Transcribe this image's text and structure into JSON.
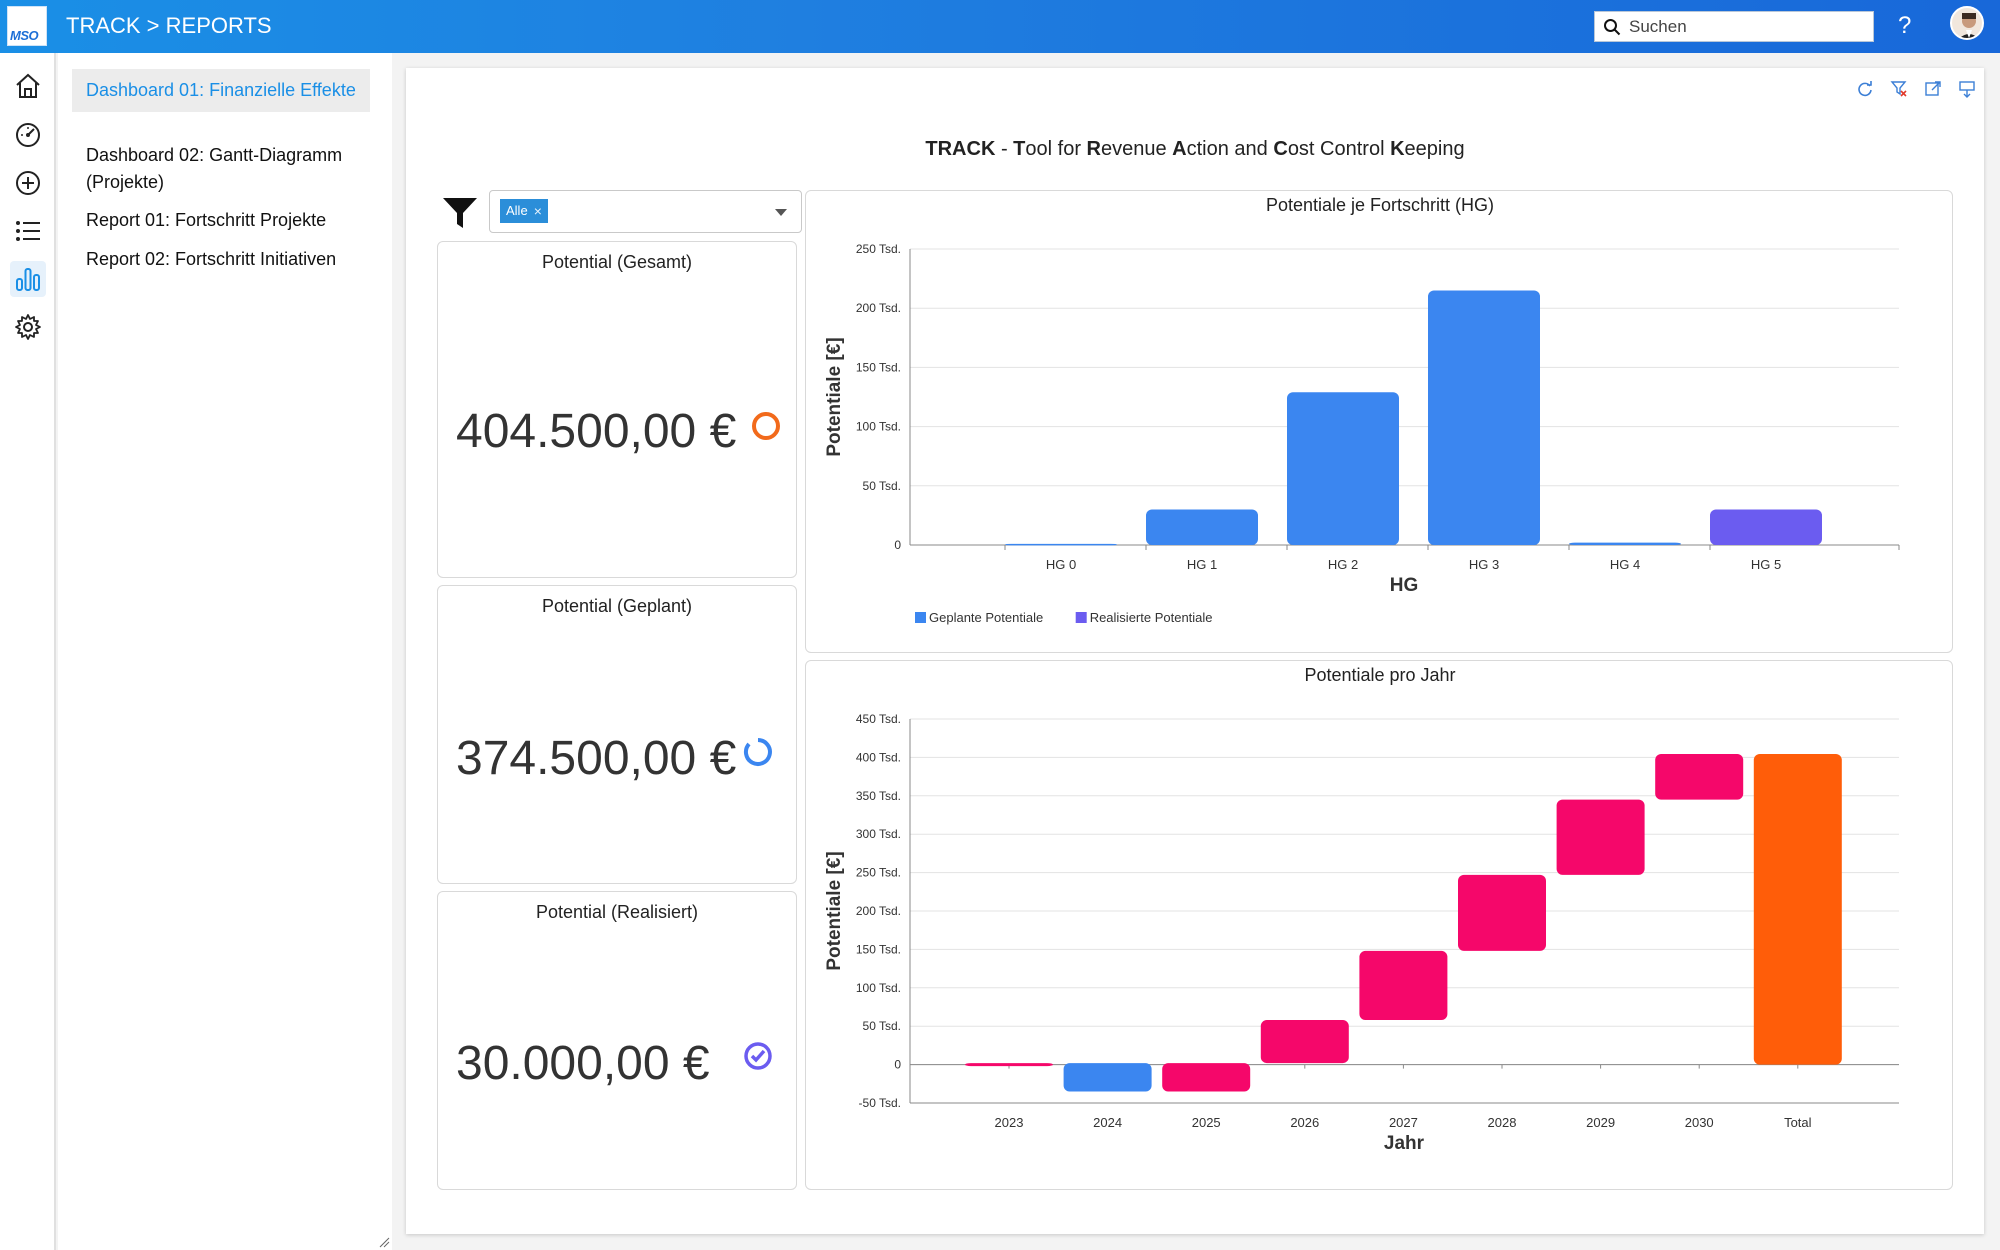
{
  "header": {
    "logo_text": "MSO",
    "title": "TRACK > REPORTS",
    "search_placeholder": "Suchen",
    "help_label": "?"
  },
  "rail": {
    "items": [
      "home-icon",
      "dashboard-gauge-icon",
      "add-circle-icon",
      "list-icon",
      "bar-chart-icon",
      "settings-gear-icon"
    ],
    "active": "bar-chart-icon"
  },
  "nav": {
    "items": [
      {
        "label": "Dashboard 01: Finanzielle Effekte",
        "active": true
      },
      {
        "label": "Dashboard 02: Gantt-Diagramm (Projekte)",
        "active": false
      },
      {
        "label": "Report 01: Fortschritt Projekte",
        "active": false
      },
      {
        "label": "Report 02: Fortschritt Initiativen",
        "active": false
      }
    ]
  },
  "toolbar": {
    "icons": [
      "refresh-icon",
      "clear-filter-icon",
      "expand-icon",
      "export-icon"
    ]
  },
  "dashboard": {
    "title_parts": [
      {
        "text": "TRACK",
        "bold": true
      },
      {
        "text": " - ",
        "bold": false
      },
      {
        "text": "T",
        "bold": true
      },
      {
        "text": "ool for ",
        "bold": false
      },
      {
        "text": "R",
        "bold": true
      },
      {
        "text": "evenue ",
        "bold": false
      },
      {
        "text": "A",
        "bold": true
      },
      {
        "text": "ction and ",
        "bold": false
      },
      {
        "text": "C",
        "bold": true
      },
      {
        "text": "ost Control ",
        "bold": false
      },
      {
        "text": "K",
        "bold": true
      },
      {
        "text": "eeping",
        "bold": false
      }
    ],
    "filter": {
      "tag_label": "Alle",
      "tag_remove": "×"
    }
  },
  "kpis": [
    {
      "title": "Potential (Gesamt)",
      "value": "404.500,00 €",
      "icon": "circle-outline-icon",
      "color": "#f26a1b"
    },
    {
      "title": "Potential (Geplant)",
      "value": "374.500,00 €",
      "icon": "progress-ring-icon",
      "color": "#3b86f0"
    },
    {
      "title": "Potential (Realisiert)",
      "value": "30.000,00 €",
      "icon": "check-circle-icon",
      "color": "#6b5cf0"
    }
  ],
  "chart_data": [
    {
      "type": "bar",
      "title": "Potentiale je Fortschritt (HG)",
      "xlabel": "HG",
      "ylabel": "Potentiale [€]",
      "categories": [
        "HG 0",
        "HG 1",
        "HG 2",
        "HG 3",
        "HG 4",
        "HG 5"
      ],
      "y_ticks": [
        "0",
        "50 Tsd.",
        "100 Tsd.",
        "150 Tsd.",
        "200 Tsd.",
        "250 Tsd."
      ],
      "ylim": [
        0,
        250000
      ],
      "series": [
        {
          "name": "Geplante Potentiale",
          "color": "#3b86f0",
          "values": [
            1000,
            30000,
            129000,
            215000,
            2000,
            0
          ]
        },
        {
          "name": "Realisierte Potentiale",
          "color": "#6b5cf0",
          "values": [
            0,
            0,
            0,
            0,
            0,
            30000
          ]
        }
      ],
      "grid": true,
      "legend": "bottom-left"
    },
    {
      "type": "bar",
      "subtype": "waterfall",
      "title": "Potentiale pro Jahr",
      "xlabel": "Jahr",
      "ylabel": "Potentiale [€]",
      "categories": [
        "2023",
        "2024",
        "2025",
        "2026",
        "2027",
        "2028",
        "2029",
        "2030",
        "Total"
      ],
      "y_ticks": [
        "-50 Tsd.",
        "0",
        "50 Tsd.",
        "100 Tsd.",
        "150 Tsd.",
        "200 Tsd.",
        "250 Tsd.",
        "300 Tsd.",
        "350 Tsd.",
        "400 Tsd.",
        "450 Tsd."
      ],
      "ylim": [
        -50000,
        450000
      ],
      "bars": [
        {
          "category": "2023",
          "start": 0,
          "end": 2000,
          "color": "#f5076a"
        },
        {
          "category": "2024",
          "start": 2000,
          "end": -35000,
          "color": "#3b86f0"
        },
        {
          "category": "2025",
          "start": -35000,
          "end": 2000,
          "color": "#f5076a"
        },
        {
          "category": "2026",
          "start": 2000,
          "end": 58000,
          "color": "#f5076a"
        },
        {
          "category": "2027",
          "start": 58000,
          "end": 148000,
          "color": "#f5076a"
        },
        {
          "category": "2028",
          "start": 148000,
          "end": 247000,
          "color": "#f5076a"
        },
        {
          "category": "2029",
          "start": 247000,
          "end": 345000,
          "color": "#f5076a"
        },
        {
          "category": "2030",
          "start": 345000,
          "end": 404500,
          "color": "#f5076a"
        },
        {
          "category": "Total",
          "start": 0,
          "end": 404500,
          "color": "#ff5d09"
        }
      ],
      "grid": true
    }
  ]
}
